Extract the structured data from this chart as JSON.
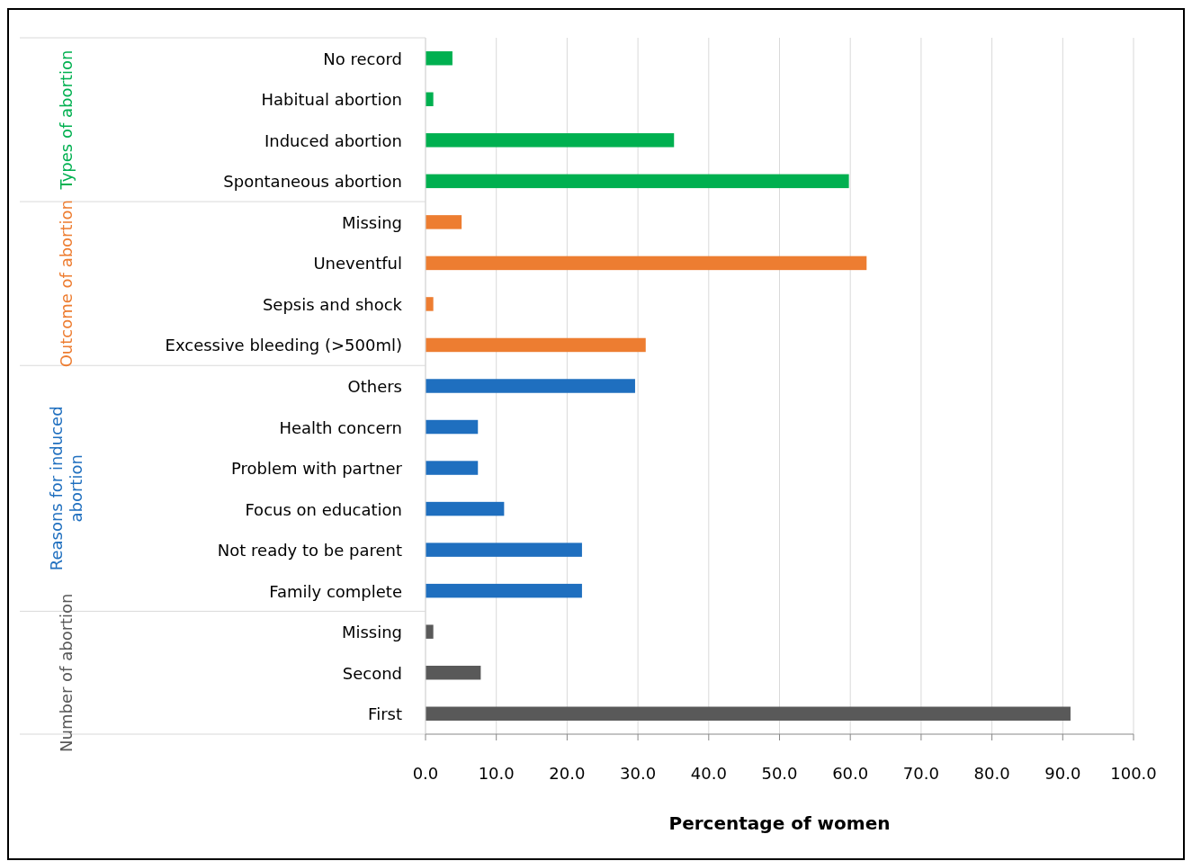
{
  "chart_data": {
    "type": "bar",
    "orientation": "horizontal",
    "xlabel": "Percentage of women",
    "categories": [
      "No record",
      "Habitual abortion",
      "Induced abortion",
      "Spontaneous abortion",
      "Missing",
      "Uneventful",
      "Sepsis and shock",
      "Excessive bleeding (>500ml)",
      "Others",
      "Health concern",
      "Problem with partner",
      "Focus on education",
      "Not ready to be parent",
      "Family complete",
      "Missing",
      "Second",
      "First"
    ],
    "series": [
      {
        "name": "Types of abortion",
        "color": "#00b050",
        "values": [
          3.8,
          1.1,
          35.1,
          59.8,
          null,
          null,
          null,
          null,
          null,
          null,
          null,
          null,
          null,
          null,
          null,
          null,
          null
        ]
      },
      {
        "name": "Outcome of abortion",
        "color": "#ed7d31",
        "values": [
          null,
          null,
          null,
          null,
          5.1,
          62.3,
          1.1,
          31.1,
          null,
          null,
          null,
          null,
          null,
          null,
          null,
          null,
          null
        ]
      },
      {
        "name": "Reasons for induced abortion",
        "color": "#1f6fbf",
        "values": [
          null,
          null,
          null,
          null,
          null,
          null,
          null,
          null,
          29.6,
          7.4,
          7.4,
          11.1,
          22.1,
          22.1,
          null,
          null,
          null
        ]
      },
      {
        "name": "Number of abortion",
        "color": "#595959",
        "values": [
          null,
          null,
          null,
          null,
          null,
          null,
          null,
          null,
          null,
          null,
          null,
          null,
          null,
          null,
          1.1,
          7.8,
          91.1
        ]
      }
    ],
    "xlim": [
      0,
      100
    ],
    "xticks": [
      {
        "value": 0,
        "label": "0.0"
      },
      {
        "value": 10,
        "label": "10.0"
      },
      {
        "value": 20,
        "label": "20.0"
      },
      {
        "value": 30,
        "label": "30.0"
      },
      {
        "value": 40,
        "label": "40.0"
      },
      {
        "value": 50,
        "label": "50.0"
      },
      {
        "value": 60,
        "label": "60.0"
      },
      {
        "value": 70,
        "label": "70.0"
      },
      {
        "value": 80,
        "label": "80.0"
      },
      {
        "value": 90,
        "label": "90.0"
      },
      {
        "value": 100,
        "label": "100.0"
      }
    ],
    "grid": "x"
  }
}
